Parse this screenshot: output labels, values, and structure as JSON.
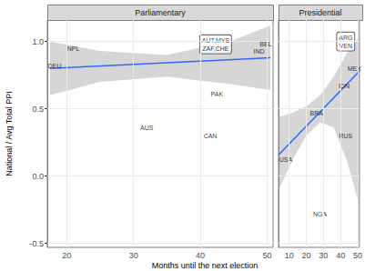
{
  "chart_data": {
    "type": "scatter",
    "xlabel": "Months until the next election",
    "ylabel": "National / Avg Total PPI",
    "ylim": [
      -0.53,
      1.16
    ],
    "yticks": [
      -0.5,
      {
        "value": 0,
        "label": "0.0"
      },
      0.5,
      {
        "value": 1,
        "label": "1.0"
      }
    ],
    "grid": true,
    "panels": [
      {
        "title": "Parliamentary",
        "xlim": [
          17.1,
          50.9
        ],
        "xticks": [
          20,
          30,
          40,
          50
        ],
        "series": [
          {
            "type": "band",
            "color": "#999999",
            "x": [
              17.5,
              25,
              35,
              45,
              50.5
            ],
            "lower": [
              0.6,
              0.7,
              0.74,
              0.68,
              0.64
            ],
            "upper": [
              1.0,
              0.93,
              0.9,
              1.01,
              1.12
            ]
          },
          {
            "type": "line",
            "color": "#3366ff",
            "x": [
              17.5,
              50.5
            ],
            "values": [
              0.8,
              0.88
            ]
          },
          {
            "type": "scatter",
            "marker": "text",
            "color": "#000000",
            "labels": [
              "NPL",
              "DEU",
              "AUS",
              "PAK",
              "CAN",
              "BEL",
              "IND"
            ],
            "x": [
              21,
              18.2,
              32,
              42.5,
              41.5,
              49.8,
              48.8
            ],
            "values": [
              0.95,
              0.82,
              0.36,
              0.61,
              0.3,
              0.98,
              0.93
            ]
          },
          {
            "type": "scatter",
            "marker": "box",
            "color": "#000000",
            "labels": [
              "AUT,MYS\nZAF,CHE"
            ],
            "x": [
              42.3
            ],
            "values": [
              0.98
            ]
          }
        ]
      },
      {
        "title": "Presidential",
        "xlim": [
          3.8,
          51.0
        ],
        "xticks": [
          10,
          20,
          30,
          40,
          50
        ],
        "series": [
          {
            "type": "band",
            "color": "#999999",
            "x": [
              4,
              12,
              20,
              28,
              36,
              44,
              51
            ],
            "lower": [
              -0.1,
              0.12,
              0.3,
              0.4,
              0.36,
              0.1,
              -0.22
            ],
            "upper": [
              0.44,
              0.47,
              0.52,
              0.6,
              0.74,
              0.92,
              1.04
            ]
          },
          {
            "type": "line",
            "color": "#3366ff",
            "x": [
              4,
              51
            ],
            "values": [
              0.16,
              0.78
            ]
          },
          {
            "type": "scatter",
            "marker": "text",
            "color": "#000000",
            "labels": [
              "USA",
              "NGA",
              "BRA",
              "MEX",
              "IDN",
              "RUS"
            ],
            "x": [
              8,
              28,
              26,
              48,
              42,
              43
            ],
            "values": [
              0.12,
              -0.28,
              0.47,
              0.8,
              0.67,
              0.3
            ]
          },
          {
            "type": "scatter",
            "marker": "box",
            "color": "#000000",
            "labels": [
              "ARG\nVEN"
            ],
            "x": [
              43
            ],
            "values": [
              1.0
            ]
          }
        ]
      }
    ]
  }
}
